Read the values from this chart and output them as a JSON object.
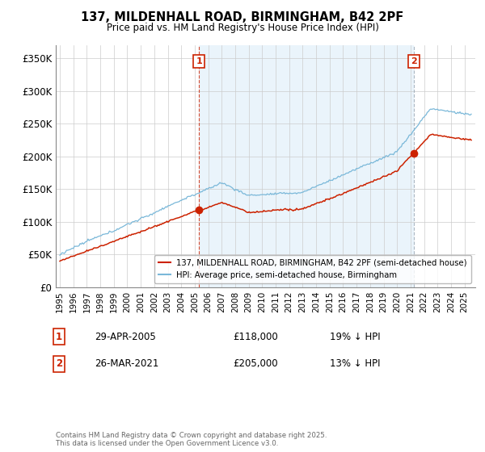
{
  "title_line1": "137, MILDENHALL ROAD, BIRMINGHAM, B42 2PF",
  "title_line2": "Price paid vs. HM Land Registry's House Price Index (HPI)",
  "yticks": [
    0,
    50000,
    100000,
    150000,
    200000,
    250000,
    300000,
    350000
  ],
  "ytick_labels": [
    "£0",
    "£50K",
    "£100K",
    "£150K",
    "£200K",
    "£250K",
    "£300K",
    "£350K"
  ],
  "ylim": [
    0,
    370000
  ],
  "hpi_color": "#7ab8d9",
  "hpi_fill_color": "#d6eaf8",
  "property_color": "#cc2200",
  "vline1_color": "#cc2200",
  "vline2_color": "#8899aa",
  "background_color": "#ffffff",
  "plot_background": "#ffffff",
  "purchase1_x": 2005.33,
  "purchase1_price": 118000,
  "purchase2_x": 2021.24,
  "purchase2_price": 205000,
  "legend_property": "137, MILDENHALL ROAD, BIRMINGHAM, B42 2PF (semi-detached house)",
  "legend_hpi": "HPI: Average price, semi-detached house, Birmingham",
  "annotation1_date": "29-APR-2005",
  "annotation1_price": "£118,000",
  "annotation1_pct": "19% ↓ HPI",
  "annotation2_date": "26-MAR-2021",
  "annotation2_price": "£205,000",
  "annotation2_pct": "13% ↓ HPI",
  "copyright_text": "Contains HM Land Registry data © Crown copyright and database right 2025.\nThis data is licensed under the Open Government Licence v3.0.",
  "xlim_start": 1994.7,
  "xlim_end": 2025.8
}
